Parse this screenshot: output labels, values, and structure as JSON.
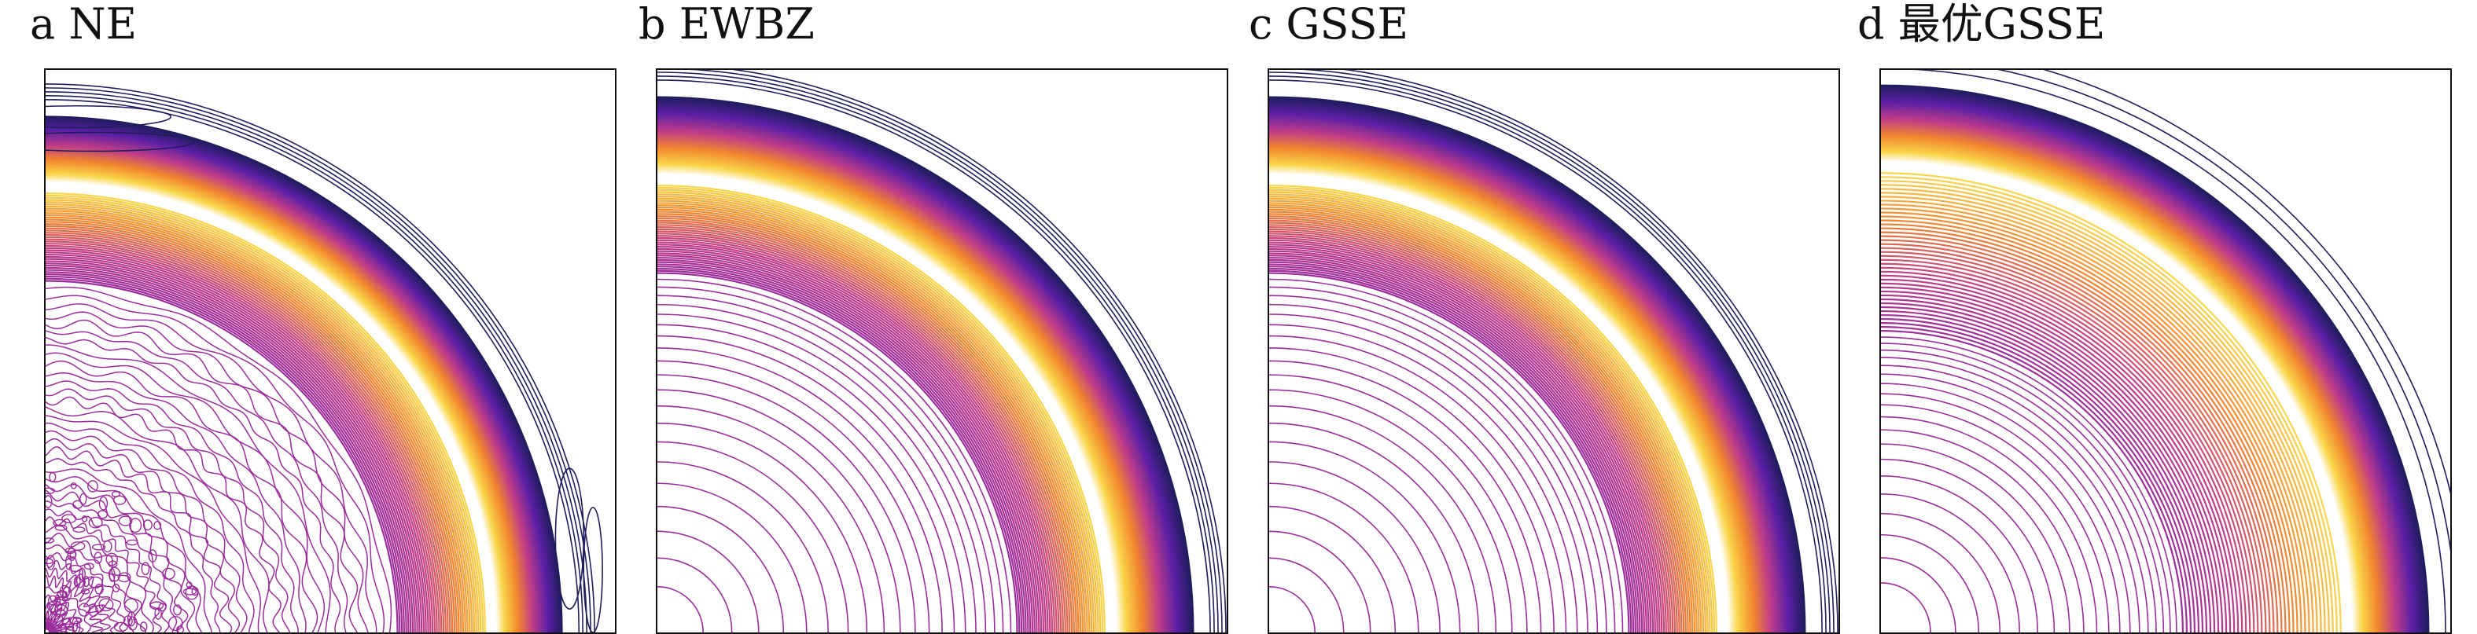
{
  "panels": [
    {
      "id": "a",
      "label": "a",
      "title": "NE",
      "style": "noisy"
    },
    {
      "id": "b",
      "label": "b",
      "title": "EWBZ",
      "style": "smooth"
    },
    {
      "id": "c",
      "label": "c",
      "title": "GSSE",
      "style": "smooth"
    },
    {
      "id": "d",
      "label": "d",
      "title": "最优GSSE",
      "style": "optimal"
    }
  ],
  "colors": {
    "outer_navy": "#1f1d5c",
    "ring_purple": "#5b1fa6",
    "ring_magenta": "#c03d88",
    "ring_orange": "#f2852e",
    "ring_yellow": "#f9d64a",
    "core_white": "#ffffff",
    "inner_purple": "#9b2d9b"
  }
}
